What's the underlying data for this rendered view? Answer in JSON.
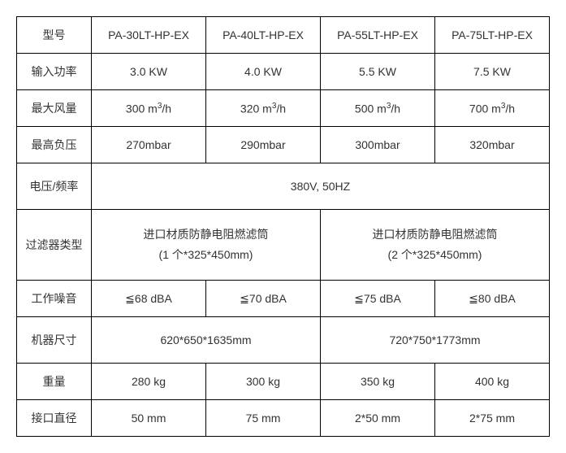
{
  "headers": {
    "model": "型号",
    "inputPower": "输入功率",
    "maxAirflow": "最大风量",
    "maxNegPressure": "最高负压",
    "voltageFreq": "电压/频率",
    "filterType": "过滤器类型",
    "noise": "工作噪音",
    "machineSize": "机器尺寸",
    "weight": "重量",
    "portDiameter": "接口直径"
  },
  "models": [
    "PA-30LT-HP-EX",
    "PA-40LT-HP-EX",
    "PA-55LT-HP-EX",
    "PA-75LT-HP-EX"
  ],
  "inputPower": [
    "3.0 KW",
    "4.0 KW",
    "5.5 KW",
    "7.5 KW"
  ],
  "maxAirflowPrefix": [
    "300 m",
    "320 m",
    "500 m",
    "700 m"
  ],
  "maxAirflowSup": "3",
  "maxAirflowSuffix": "/h",
  "maxNegPressure": [
    "270mbar",
    "290mbar",
    "300mbar",
    "320mbar"
  ],
  "voltageFreq": "380V, 50HZ",
  "filterType": {
    "left": {
      "line1": "进口材质防静电阻燃滤筒",
      "line2": "(1 个*325*450mm)"
    },
    "right": {
      "line1": "进口材质防静电阻燃滤筒",
      "line2": "(2 个*325*450mm)"
    }
  },
  "noise": [
    "≦68 dBA",
    "≦70 dBA",
    "≦75 dBA",
    "≦80 dBA"
  ],
  "machineSize": {
    "left": "620*650*1635mm",
    "right": "720*750*1773mm"
  },
  "weight": [
    "280 kg",
    "300 kg",
    "350 kg",
    "400 kg"
  ],
  "portDiameter": [
    "50 mm",
    "75 mm",
    "2*50 mm",
    "2*75 mm"
  ]
}
